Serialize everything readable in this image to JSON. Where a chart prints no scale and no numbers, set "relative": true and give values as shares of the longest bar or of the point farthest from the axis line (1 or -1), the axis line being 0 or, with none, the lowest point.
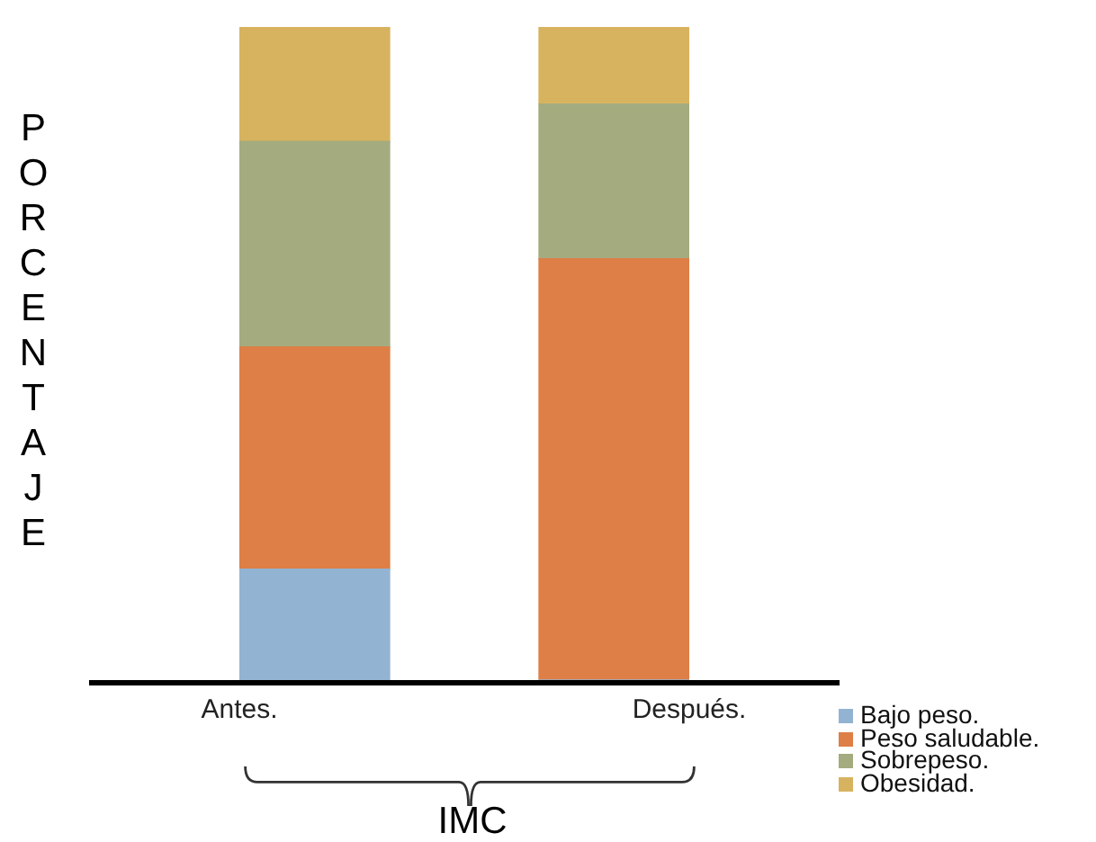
{
  "chart_data": {
    "type": "bar",
    "stacked": true,
    "relative": true,
    "xlabel": "IMC",
    "ylabel": "PORCENTAJE",
    "legend": "bottom right",
    "categories": [
      "Antes.",
      "Después."
    ],
    "series": [
      {
        "name": "Bajo peso.",
        "color": "#93b3d2",
        "values": [
          0.17,
          0
        ]
      },
      {
        "name": "Peso saludable.",
        "color": "#dd7f47",
        "values": [
          0.34,
          0.645
        ]
      },
      {
        "name": "Sobrepeso.",
        "color": "#a4ab7f",
        "values": [
          0.315,
          0.237
        ]
      },
      {
        "name": "Obesidad.",
        "color": "#d8b35f",
        "values": [
          0.175,
          0.118
        ]
      }
    ]
  }
}
